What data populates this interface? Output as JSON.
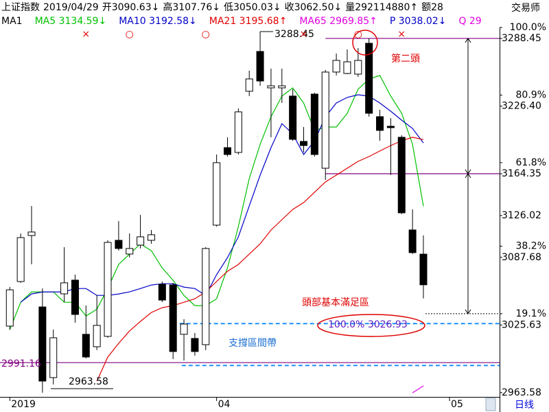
{
  "chart_data": {
    "type": "candlestick",
    "info": [
      "上证指数",
      "2019/04/29",
      "开3090.63↓",
      "高3107.76↓",
      "低3050.03↓",
      "收3062.50↓",
      "量292114880↑",
      "额28"
    ],
    "brand": "交易师",
    "period": "日线",
    "ma_label": "MA1",
    "open": [
      3024.6,
      3065.5,
      3107.7,
      3042.2,
      2977.4,
      3054.2,
      3066.8,
      3017.1,
      3005.7,
      3015.2,
      3103.3,
      3090.7,
      3098.9,
      3103.3,
      3063.0,
      3062.4,
      3017.1,
      3013.3,
      3007.6,
      3117.2,
      3188.3,
      3183.9,
      3240.0,
      3276.5,
      3243.1,
      3243.1,
      3235.6,
      3194.0,
      3237.4,
      3169.4,
      3257.6,
      3256.3,
      3255.7,
      3284.0,
      3216.7,
      3207.9,
      3197.8,
      3112.8,
      3090.63
    ],
    "high": [
      3060.5,
      3109.6,
      3134.8,
      3059.2,
      3021.4,
      3097.0,
      3071.8,
      3043.5,
      3053.0,
      3103.3,
      3121.0,
      3109.6,
      3126.6,
      3112.8,
      3065.5,
      3064.3,
      3031.0,
      3018.3,
      3097.0,
      3182.0,
      3197.8,
      3224.2,
      3258.9,
      3278.4,
      3260.8,
      3260.8,
      3241.9,
      3207.2,
      3238.7,
      3259.5,
      3274.6,
      3278.4,
      3279.6,
      3288.45,
      3223.0,
      3215.4,
      3199.7,
      3131.7,
      3107.76
    ],
    "low": [
      3021.4,
      3064.3,
      3081.3,
      2963.58,
      2971.1,
      3046.6,
      3027.8,
      2995.0,
      3002.6,
      3013.9,
      3093.9,
      3087.6,
      3095.8,
      3100.2,
      3046.6,
      2994.4,
      2993.1,
      2997.5,
      3002.6,
      3115.9,
      3180.1,
      3182.0,
      3235.6,
      3245.0,
      3197.8,
      3229.3,
      3194.6,
      3183.9,
      3180.1,
      3158.7,
      3254.5,
      3255.7,
      3253.2,
      3216.7,
      3194.6,
      3163.2,
      3127.3,
      3090.7,
      3050.03
    ],
    "close": [
      3057.9,
      3105.8,
      3110.9,
      2974.2,
      3013.9,
      3064.3,
      3035.3,
      2996.3,
      3025.3,
      3101.4,
      3095.8,
      3095.8,
      3106.5,
      3108.4,
      3048.5,
      3001.3,
      3026.5,
      3001.3,
      3095.8,
      3174.5,
      3182.0,
      3221.1,
      3251.3,
      3249.4,
      3245.0,
      3245.0,
      3195.9,
      3190.2,
      3182.0,
      3257.6,
      3268.3,
      3267.0,
      3268.3,
      3219.8,
      3204.1,
      3206.6,
      3128.5,
      3092.0,
      3062.5
    ],
    "series": [
      {
        "name": "MA5 3134.59↓",
        "color": "#00c000",
        "values": [
          3021.3,
          3046.5,
          3056.0,
          3056.0,
          3056.0,
          3046.5,
          3046.5,
          3033.9,
          3040.2,
          3059.1,
          3081.2,
          3090.6,
          3100.1,
          3093.8,
          3078.0,
          3066.7,
          3052.8,
          3043.4,
          3043.4,
          3049.7,
          3078.0,
          3115.8,
          3159.9,
          3191.4,
          3216.6,
          3235.5,
          3243.1,
          3229.2,
          3204.0,
          3207.2,
          3207.2,
          3219.8,
          3241.8,
          3251.3,
          3254.4,
          3235.5,
          3219.8,
          3191.4,
          3134.59
        ]
      },
      {
        "name": "MA10 3192.58↓",
        "color": "#0000c8",
        "values": [
          null,
          3046.5,
          3054.1,
          3056.0,
          3056.0,
          3056.0,
          3059.1,
          3059.1,
          3052.8,
          3052.8,
          3054.1,
          3056.0,
          3059.1,
          3062.3,
          3063.5,
          3063.5,
          3060.4,
          3059.1,
          3052.8,
          3071.8,
          3087.5,
          3106.4,
          3134.8,
          3163.1,
          3188.3,
          3210.3,
          3200.9,
          3182.0,
          3194.6,
          3216.6,
          3229.2,
          3234.3,
          3236.8,
          3235.5,
          3229.2,
          3221.7,
          3213.5,
          3205.9,
          3192.58
        ]
      },
      {
        "name": "MA21 3195.68↑",
        "color": "#e00000",
        "values": [
          null,
          null,
          null,
          null,
          null,
          null,
          null,
          null,
          2974.1,
          2996.2,
          3008.8,
          3020.1,
          3028.9,
          3037.1,
          3041.5,
          3043.4,
          3046.5,
          3049.7,
          3056.0,
          3065.5,
          3074.9,
          3081.2,
          3090.6,
          3100.1,
          3112.7,
          3122.2,
          3131.6,
          3137.9,
          3147.4,
          3156.8,
          3163.1,
          3169.4,
          3175.7,
          3180.1,
          3185.2,
          3190.2,
          3194.6,
          3197.8,
          3195.68
        ]
      },
      {
        "name": "MA65 2969.85↑",
        "color": "#e000e0",
        "values": [
          null,
          null,
          null,
          null,
          null,
          null,
          null,
          null,
          null,
          null,
          null,
          null,
          null,
          null,
          null,
          null,
          null,
          null,
          null,
          null,
          null,
          null,
          null,
          null,
          null,
          null,
          null,
          null,
          null,
          null,
          null,
          null,
          null,
          null,
          null,
          null,
          null,
          2963.4,
          2969.85
        ]
      }
    ],
    "extra_legend": [
      {
        "name": "P 3038.02↓",
        "color": "#0000c8"
      },
      {
        "name": "Q 29",
        "color": "#e000e0"
      }
    ],
    "signals": [
      "×",
      "○",
      "○",
      "×",
      "○",
      "×"
    ],
    "ylim": [
      2959.7,
      3298.5
    ],
    "yticks": [
      3288.45,
      {
        "value": 3226.4,
        "label": "3226.40"
      },
      3164.35,
      3126.02,
      3087.68,
      3025.63,
      2963.58
    ],
    "y2lim": [
      -4.4,
      100
    ],
    "y2ticks": [
      {
        "value": 100,
        "label": "100.0%"
      },
      {
        "value": 80.9,
        "label": "80.9%"
      },
      {
        "value": 61.8,
        "label": "61.8%"
      },
      {
        "value": 38.2,
        "label": "38.2%"
      },
      {
        "value": 19.1,
        "label": "19.1%"
      }
    ],
    "xlim": [
      -0.9,
      45
    ],
    "xticks": [
      {
        "value": 0,
        "label": "2019"
      },
      {
        "value": 19,
        "label": "04"
      },
      {
        "value": 40.4,
        "label": "05"
      }
    ],
    "levels": [
      {
        "value": 3288.45,
        "color": "#800080"
      },
      {
        "value": 3164.35,
        "color": "#800080"
      },
      {
        "value": 2991.16,
        "color": "#800080"
      },
      {
        "value": 3026.93,
        "color": "#1e90ff",
        "label": "100.0% 3026.93"
      },
      {
        "value": 2988.5,
        "color": "#1e90ff"
      }
    ],
    "high_label": 3288.45,
    "low_label": 2963.58,
    "annotations": [
      "第二頭",
      "頭部基本滿足區",
      "支撐區間帶"
    ]
  }
}
